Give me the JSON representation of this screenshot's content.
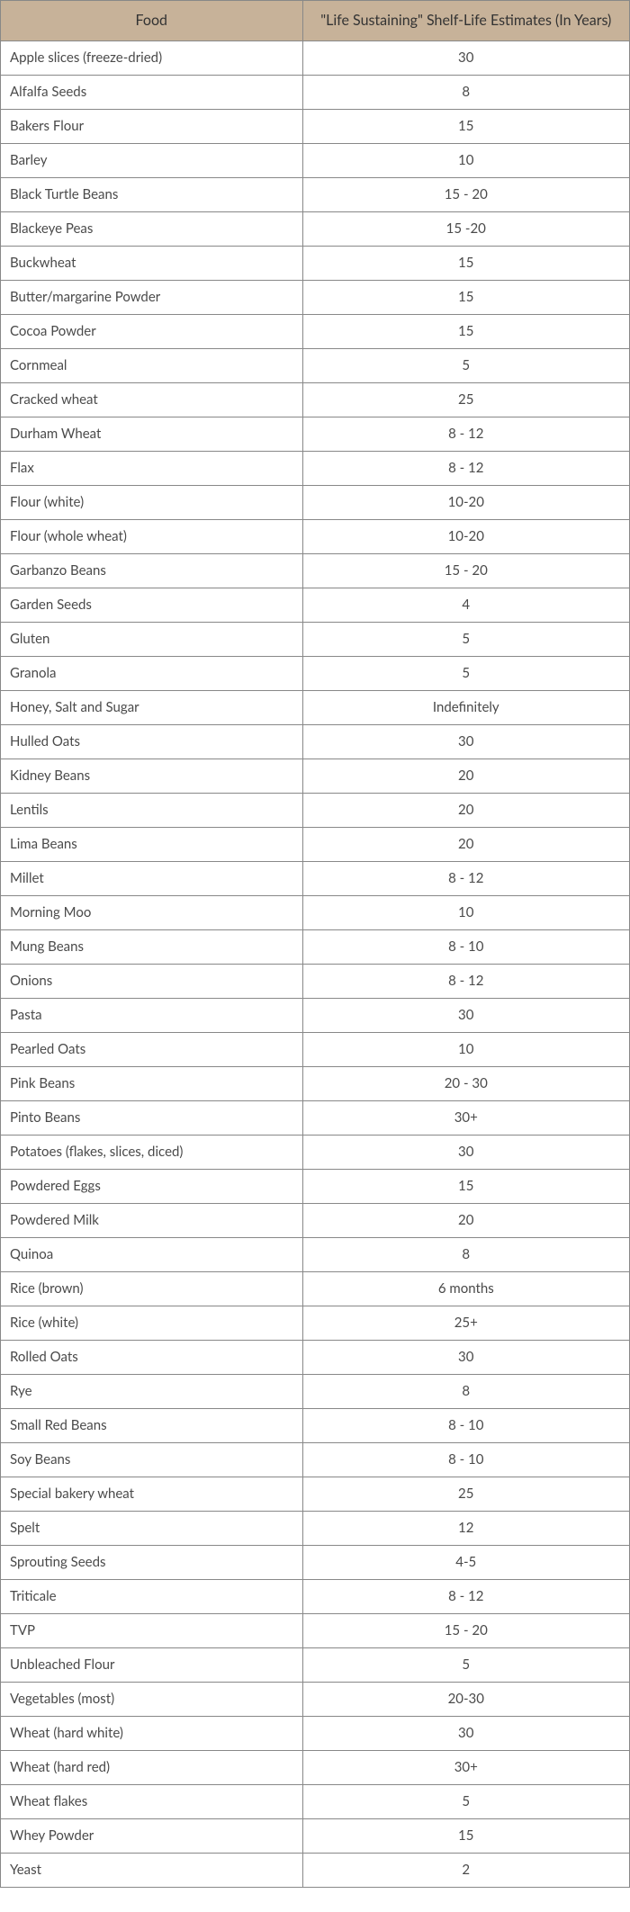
{
  "table": {
    "header_bg": "#c7b299",
    "header_color": "#333333",
    "cell_color": "#4a4a4a",
    "font_size_header": 16,
    "font_size_cell": 15,
    "col_widths": [
      "48%",
      "52%"
    ],
    "columns": [
      "Food",
      "\"Life Sustaining\" Shelf-Life Estimates (In Years)"
    ],
    "rows": [
      [
        "Apple slices (freeze-dried)",
        "30"
      ],
      [
        "Alfalfa Seeds",
        "8"
      ],
      [
        "Bakers Flour",
        "15"
      ],
      [
        "Barley",
        "10"
      ],
      [
        "Black Turtle Beans",
        "15 - 20"
      ],
      [
        "Blackeye Peas",
        "15 -20"
      ],
      [
        "Buckwheat",
        "15"
      ],
      [
        "Butter/margarine Powder",
        "15"
      ],
      [
        "Cocoa Powder",
        "15"
      ],
      [
        "Cornmeal",
        "5"
      ],
      [
        "Cracked wheat",
        "25"
      ],
      [
        "Durham Wheat",
        "8 - 12"
      ],
      [
        "Flax",
        "8 - 12"
      ],
      [
        "Flour (white)",
        "10-20"
      ],
      [
        "Flour (whole wheat)",
        "10-20"
      ],
      [
        "Garbanzo Beans",
        "15 - 20"
      ],
      [
        "Garden Seeds",
        "4"
      ],
      [
        "Gluten",
        "5"
      ],
      [
        "Granola",
        "5"
      ],
      [
        "Honey, Salt and Sugar",
        "Indefinitely"
      ],
      [
        "Hulled Oats",
        "30"
      ],
      [
        "Kidney Beans",
        "20"
      ],
      [
        "Lentils",
        "20"
      ],
      [
        "Lima Beans",
        "20"
      ],
      [
        "Millet",
        "8 - 12"
      ],
      [
        "Morning Moo",
        "10"
      ],
      [
        "Mung Beans",
        "8 - 10"
      ],
      [
        "Onions",
        "8 - 12"
      ],
      [
        "Pasta",
        "30"
      ],
      [
        "Pearled Oats",
        "10"
      ],
      [
        "Pink Beans",
        "20 - 30"
      ],
      [
        "Pinto Beans",
        "30+"
      ],
      [
        "Potatoes (flakes, slices, diced)",
        "30"
      ],
      [
        "Powdered Eggs",
        "15"
      ],
      [
        "Powdered Milk",
        "20"
      ],
      [
        "Quinoa",
        "8"
      ],
      [
        "Rice (brown)",
        "6 months"
      ],
      [
        "Rice (white)",
        "25+"
      ],
      [
        "Rolled Oats",
        "30"
      ],
      [
        "Rye",
        "8"
      ],
      [
        "Small Red Beans",
        "8 - 10"
      ],
      [
        "Soy Beans",
        "8 - 10"
      ],
      [
        "Special bakery wheat",
        "25"
      ],
      [
        "Spelt",
        "12"
      ],
      [
        "Sprouting Seeds",
        "4-5"
      ],
      [
        "Triticale",
        "8 - 12"
      ],
      [
        "TVP",
        "15 - 20"
      ],
      [
        "Unbleached Flour",
        "5"
      ],
      [
        "Vegetables (most)",
        "20-30"
      ],
      [
        "Wheat (hard white)",
        "30"
      ],
      [
        "Wheat (hard red)",
        "30+"
      ],
      [
        "Wheat flakes",
        "5"
      ],
      [
        "Whey Powder",
        "15"
      ],
      [
        "Yeast",
        "2"
      ]
    ]
  }
}
